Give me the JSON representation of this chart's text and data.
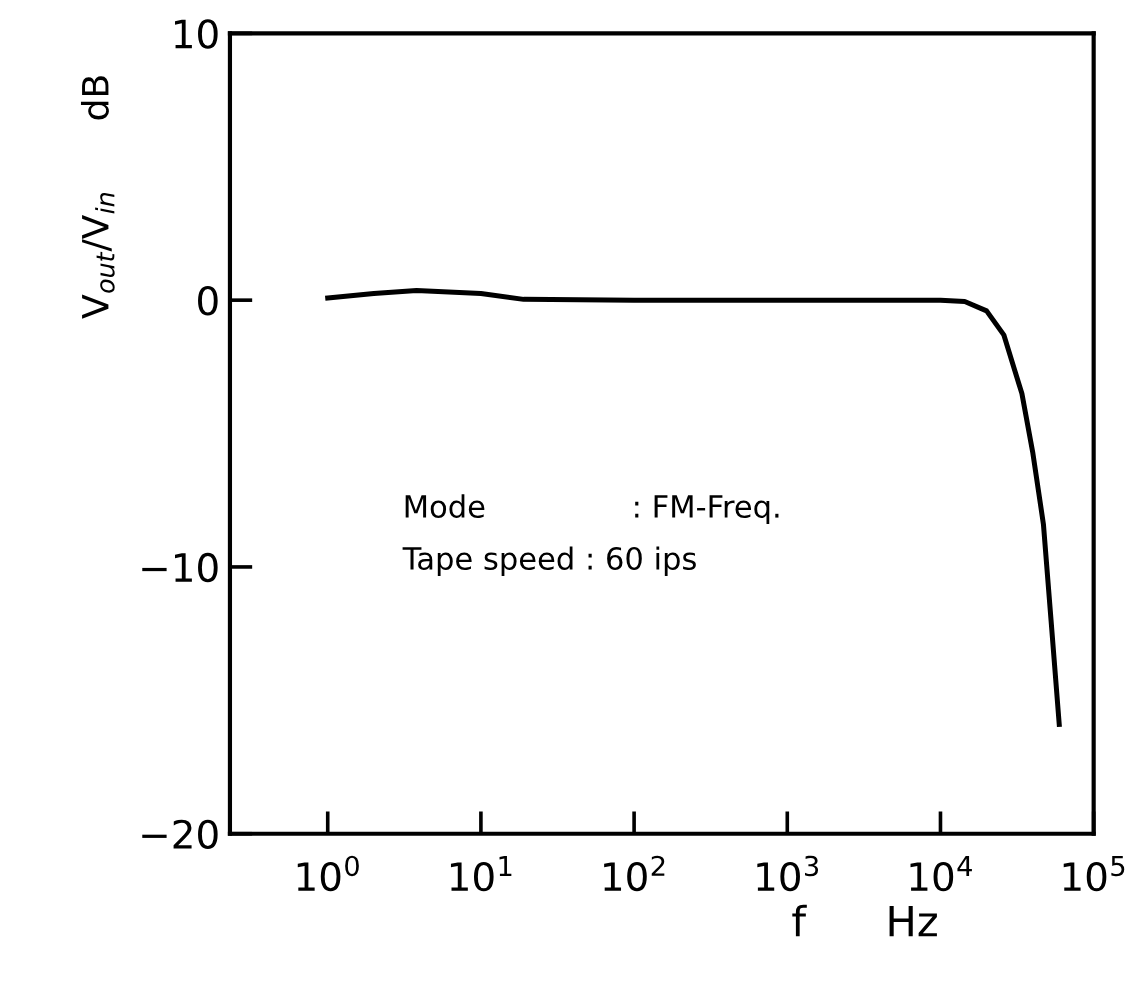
{
  "chart_data": {
    "type": "line",
    "xlabel": "f      Hz",
    "ylabel": "V$_{out}$/V$_{in}$      dB",
    "annotations": [
      "Mode               : FM-Freq.",
      "Tape speed : 60 ips"
    ],
    "log": "x",
    "grid": false,
    "marker": "none",
    "line_style": "solid",
    "xlim": [
      0.23,
      100000
    ],
    "ylim": [
      -20,
      10
    ],
    "xticks": [
      {
        "value": 1,
        "label": "10$^{0}$"
      },
      {
        "value": 10,
        "label": "10$^{1}$"
      },
      {
        "value": 100,
        "label": "10$^{2}$"
      },
      {
        "value": 1000,
        "label": "10$^{3}$"
      },
      {
        "value": 10000,
        "label": "10$^{4}$"
      },
      {
        "value": 100000,
        "label": "10$^{5}$"
      }
    ],
    "yticks": [
      -20,
      -10,
      0,
      10
    ],
    "x": [
      1,
      2,
      3.8,
      10,
      19,
      100,
      1000,
      10000,
      14400,
      20000,
      25900,
      34000,
      40000,
      47000,
      52700,
      59600
    ],
    "series": [
      {
        "color": "#000000",
        "values": [
          0.08,
          0.25,
          0.36,
          0.25,
          0.03,
          0,
          0,
          0,
          -0.05,
          -0.4,
          -1.3,
          -3.5,
          -5.7,
          -8.4,
          -12,
          -15.9
        ]
      }
    ]
  }
}
